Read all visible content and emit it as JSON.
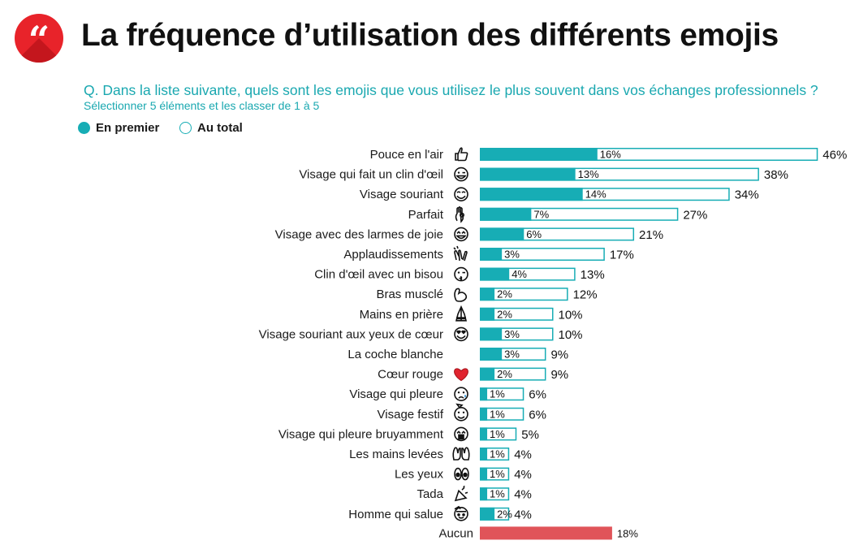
{
  "header": {
    "logo_glyph": "“",
    "title": "La fréquence d’utilisation des différents emojis",
    "question": "Q. Dans la liste suivante, quels sont les emojis que vous utilisez le plus souvent dans vos échanges professionnels ?",
    "subquestion": "Sélectionner 5 éléments et les classer de 1 à 5"
  },
  "legend": {
    "first": "En premier",
    "total": "Au total"
  },
  "colors": {
    "accent": "#17adb5",
    "brand_red": "#e8232a",
    "aucun": "#e05459",
    "question_text": "#1aa8b0"
  },
  "chart_data": {
    "type": "bar",
    "orientation": "horizontal",
    "categories": [
      "Pouce en l'air",
      "Visage qui fait un clin d'œil",
      "Visage souriant",
      "Parfait",
      "Visage avec des larmes de joie",
      "Applaudissements",
      "Clin d'œil avec un bisou",
      "Bras musclé",
      "Mains en prière",
      "Visage souriant aux yeux de cœur",
      "La coche blanche",
      "Cœur rouge",
      "Visage qui pleure",
      "Visage festif",
      "Visage qui pleure bruyamment",
      "Les mains levées",
      "Les yeux",
      "Tada",
      "Homme qui salue"
    ],
    "icons": [
      "thumbs-up-icon",
      "winking-face-icon",
      "smiling-face-icon",
      "ok-hand-icon",
      "tears-of-joy-icon",
      "clapping-hands-icon",
      "kissing-wink-icon",
      "flexed-biceps-icon",
      "folded-hands-icon",
      "heart-eyes-icon",
      "",
      "red-heart-icon",
      "crying-face-icon",
      "party-face-icon",
      "loudly-crying-icon",
      "raised-hands-icon",
      "eyes-icon",
      "party-popper-icon",
      "saluting-man-icon"
    ],
    "series": [
      {
        "name": "En premier",
        "values": [
          16,
          13,
          14,
          7,
          6,
          3,
          4,
          2,
          2,
          3,
          3,
          2,
          1,
          1,
          1,
          1,
          1,
          1,
          2
        ]
      },
      {
        "name": "Au total",
        "values": [
          46,
          38,
          34,
          27,
          21,
          17,
          13,
          12,
          10,
          10,
          9,
          9,
          6,
          6,
          5,
          4,
          4,
          4,
          4
        ]
      }
    ],
    "none": {
      "label": "Aucun",
      "value": 18
    },
    "unit": "%"
  }
}
